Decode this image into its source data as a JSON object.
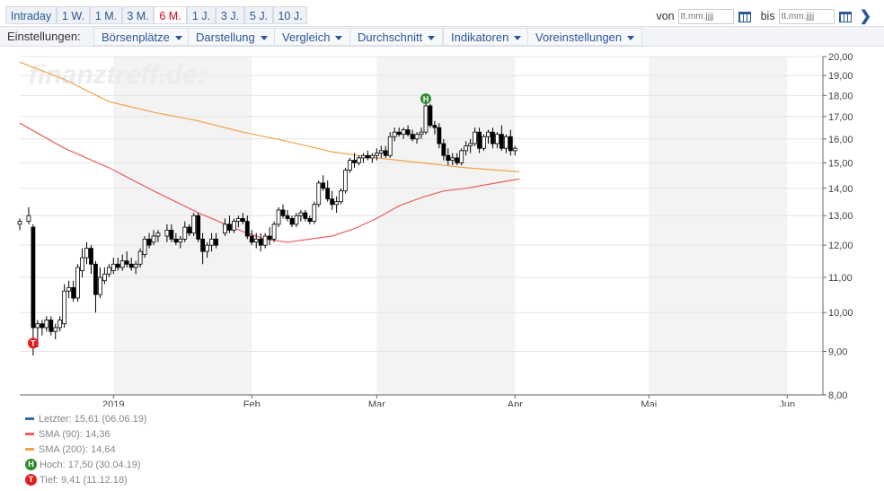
{
  "range_tabs": [
    {
      "label": "Intraday",
      "active": false
    },
    {
      "label": "1 W.",
      "active": false
    },
    {
      "label": "1 M.",
      "active": false
    },
    {
      "label": "3 M.",
      "active": false
    },
    {
      "label": "6 M.",
      "active": true
    },
    {
      "label": "1 J.",
      "active": false
    },
    {
      "label": "3 J.",
      "active": false
    },
    {
      "label": "5 J.",
      "active": false
    },
    {
      "label": "10 J.",
      "active": false
    }
  ],
  "date_range": {
    "from_label": "von",
    "to_label": "bis",
    "from_placeholder": "tt.mm.jjjj",
    "to_placeholder": "tt.mm.jjjj"
  },
  "settings": {
    "label": "Einstellungen:",
    "menus": [
      "Börsenplätze",
      "Darstellung",
      "Vergleich",
      "Durchschnitt",
      "Indikatoren",
      "Voreinstellungen"
    ]
  },
  "watermark": "finanztreff.de:",
  "colors": {
    "up": "#ffffff",
    "down": "#000000",
    "sma90": "#e8605e",
    "sma200": "#f0a24a",
    "last": "#2f6aa0",
    "high_badge": "#2e8b2e",
    "low_badge": "#e02020",
    "month_band": "#f3f3f3"
  },
  "chart_data": {
    "type": "candlestick",
    "title": "",
    "xlabel": "",
    "ylabel": "",
    "ylim": [
      8,
      20
    ],
    "yticks": [
      "8,00",
      "9,00",
      "10,00",
      "11,00",
      "12,00",
      "13,00",
      "14,00",
      "15,00",
      "16,00",
      "17,00",
      "18,00",
      "19,00",
      "20,00"
    ],
    "yscale": "log",
    "grid": true,
    "x_labels": [
      "2019",
      "Feb",
      "Mar",
      "Apr",
      "Mai",
      "Jun"
    ],
    "x_label_days": [
      21,
      52,
      80,
      111,
      141,
      172
    ],
    "shaded_months": [
      [
        21,
        52
      ],
      [
        80,
        111
      ],
      [
        141,
        172
      ]
    ],
    "x_range": [
      0,
      180
    ],
    "ohlc": [
      [
        0,
        12.7,
        12.9,
        12.5,
        12.8
      ],
      [
        2,
        12.8,
        13.3,
        12.7,
        13.0
      ],
      [
        3,
        12.6,
        12.7,
        8.9,
        9.6
      ],
      [
        4,
        9.6,
        9.8,
        9.1,
        9.7
      ],
      [
        5,
        9.7,
        9.8,
        9.4,
        9.6
      ],
      [
        6,
        9.6,
        9.9,
        9.5,
        9.8
      ],
      [
        7,
        9.8,
        9.9,
        9.4,
        9.5
      ],
      [
        8,
        9.5,
        9.7,
        9.3,
        9.6
      ],
      [
        9,
        9.6,
        9.9,
        9.5,
        9.8
      ],
      [
        10,
        9.7,
        10.8,
        9.6,
        10.6
      ],
      [
        11,
        10.6,
        10.9,
        10.4,
        10.7
      ],
      [
        12,
        10.7,
        10.9,
        10.3,
        10.4
      ],
      [
        13,
        10.4,
        11.4,
        10.3,
        11.3
      ],
      [
        14,
        11.2,
        11.9,
        11.0,
        11.6
      ],
      [
        15,
        11.6,
        12.1,
        11.4,
        11.9
      ],
      [
        16,
        11.9,
        12.0,
        11.1,
        11.4
      ],
      [
        17,
        11.4,
        11.5,
        10.0,
        10.5
      ],
      [
        18,
        10.5,
        11.3,
        10.4,
        11.0
      ],
      [
        19,
        10.9,
        11.3,
        10.8,
        11.1
      ],
      [
        20,
        11.1,
        11.4,
        11.0,
        11.3
      ],
      [
        21,
        11.2,
        11.6,
        11.1,
        11.4
      ],
      [
        22,
        11.4,
        11.6,
        11.2,
        11.3
      ],
      [
        23,
        11.3,
        11.7,
        11.2,
        11.5
      ],
      [
        24,
        11.5,
        11.8,
        11.3,
        11.4
      ],
      [
        25,
        11.4,
        11.6,
        11.2,
        11.3
      ],
      [
        26,
        11.3,
        11.5,
        11.1,
        11.4
      ],
      [
        27,
        11.4,
        11.9,
        11.3,
        11.8
      ],
      [
        28,
        11.7,
        12.3,
        11.6,
        12.2
      ],
      [
        29,
        12.2,
        12.4,
        11.9,
        12.0
      ],
      [
        30,
        12.1,
        12.5,
        12.0,
        12.3
      ],
      [
        31,
        12.3,
        12.5,
        12.1,
        12.4
      ],
      [
        33,
        12.3,
        12.7,
        12.1,
        12.5
      ],
      [
        34,
        12.5,
        12.7,
        12.1,
        12.2
      ],
      [
        35,
        12.2,
        12.4,
        12.0,
        12.1
      ],
      [
        36,
        12.1,
        12.3,
        11.9,
        12.2
      ],
      [
        37,
        12.2,
        12.8,
        12.1,
        12.6
      ],
      [
        38,
        12.6,
        12.7,
        12.3,
        12.4
      ],
      [
        39,
        12.4,
        13.1,
        12.3,
        13.0
      ],
      [
        40,
        13.0,
        13.1,
        12.1,
        12.2
      ],
      [
        41,
        12.2,
        12.4,
        11.4,
        11.8
      ],
      [
        42,
        11.8,
        12.1,
        11.6,
        12.0
      ],
      [
        43,
        12.0,
        12.4,
        11.8,
        12.2
      ],
      [
        44,
        12.2,
        12.4,
        11.9,
        12.0
      ],
      [
        46,
        12.4,
        12.9,
        12.3,
        12.7
      ],
      [
        47,
        12.7,
        13.0,
        12.4,
        12.5
      ],
      [
        48,
        12.5,
        12.9,
        12.4,
        12.8
      ],
      [
        49,
        12.8,
        13.0,
        12.6,
        12.9
      ],
      [
        50,
        12.9,
        13.1,
        12.7,
        12.8
      ],
      [
        51,
        12.8,
        13.0,
        12.2,
        12.3
      ],
      [
        52,
        12.3,
        12.5,
        12.0,
        12.1
      ],
      [
        53,
        12.1,
        12.4,
        11.9,
        12.2
      ],
      [
        54,
        12.2,
        12.4,
        11.8,
        12.0
      ],
      [
        55,
        12.0,
        12.4,
        11.9,
        12.3
      ],
      [
        56,
        12.3,
        12.6,
        12.0,
        12.2
      ],
      [
        57,
        12.2,
        12.8,
        12.1,
        12.7
      ],
      [
        58,
        12.7,
        13.3,
        12.6,
        13.2
      ],
      [
        59,
        13.2,
        13.4,
        12.9,
        13.0
      ],
      [
        60,
        13.0,
        13.2,
        12.8,
        12.9
      ],
      [
        61,
        12.9,
        13.0,
        12.6,
        12.7
      ],
      [
        62,
        12.7,
        13.1,
        12.6,
        13.0
      ],
      [
        63,
        13.0,
        13.2,
        12.8,
        13.1
      ],
      [
        64,
        13.1,
        13.2,
        12.8,
        12.9
      ],
      [
        65,
        12.9,
        13.0,
        12.7,
        12.8
      ],
      [
        66,
        12.8,
        13.5,
        12.7,
        13.4
      ],
      [
        67,
        13.4,
        14.3,
        13.3,
        14.2
      ],
      [
        68,
        14.2,
        14.5,
        13.9,
        14.0
      ],
      [
        69,
        14.0,
        14.3,
        13.5,
        13.6
      ],
      [
        70,
        13.6,
        13.9,
        13.2,
        13.4
      ],
      [
        71,
        13.4,
        13.7,
        13.1,
        13.5
      ],
      [
        72,
        13.5,
        14.0,
        13.4,
        13.9
      ],
      [
        73,
        13.9,
        14.8,
        13.8,
        14.7
      ],
      [
        74,
        14.7,
        15.2,
        14.6,
        15.1
      ],
      [
        75,
        15.1,
        15.4,
        14.8,
        15.0
      ],
      [
        76,
        15.0,
        15.3,
        14.9,
        15.2
      ],
      [
        77,
        15.2,
        15.4,
        15.0,
        15.3
      ],
      [
        78,
        15.3,
        15.5,
        15.1,
        15.2
      ],
      [
        79,
        15.2,
        15.4,
        15.0,
        15.3
      ],
      [
        80,
        15.3,
        15.6,
        15.1,
        15.4
      ],
      [
        81,
        15.4,
        15.7,
        15.2,
        15.5
      ],
      [
        82,
        15.5,
        15.7,
        15.2,
        15.3
      ],
      [
        83,
        15.3,
        16.3,
        15.2,
        16.1
      ],
      [
        84,
        16.1,
        16.5,
        15.9,
        16.3
      ],
      [
        85,
        16.3,
        16.5,
        16.1,
        16.2
      ],
      [
        86,
        16.2,
        16.5,
        16.0,
        16.4
      ],
      [
        87,
        16.4,
        16.6,
        16.1,
        16.2
      ],
      [
        88,
        16.2,
        16.4,
        15.9,
        16.0
      ],
      [
        89,
        16.0,
        16.3,
        15.8,
        16.2
      ],
      [
        90,
        16.2,
        16.5,
        16.0,
        16.3
      ],
      [
        91,
        16.3,
        17.6,
        16.2,
        17.5
      ],
      [
        92,
        17.5,
        17.6,
        16.5,
        16.6
      ],
      [
        93,
        16.6,
        16.8,
        16.2,
        16.5
      ],
      [
        94,
        16.5,
        16.7,
        15.6,
        15.8
      ],
      [
        95,
        15.8,
        16.0,
        15.1,
        15.3
      ],
      [
        96,
        15.3,
        15.6,
        14.9,
        15.1
      ],
      [
        97,
        15.1,
        15.4,
        14.9,
        15.2
      ],
      [
        98,
        15.2,
        15.4,
        14.9,
        15.0
      ],
      [
        99,
        15.0,
        15.6,
        14.9,
        15.5
      ],
      [
        100,
        15.5,
        15.9,
        15.3,
        15.7
      ],
      [
        101,
        15.7,
        16.0,
        15.4,
        15.8
      ],
      [
        102,
        15.8,
        16.5,
        15.7,
        16.3
      ],
      [
        103,
        16.3,
        16.5,
        15.4,
        15.6
      ],
      [
        104,
        15.6,
        16.2,
        15.5,
        16.1
      ],
      [
        105,
        16.1,
        16.4,
        15.8,
        16.3
      ],
      [
        106,
        16.3,
        16.5,
        15.6,
        15.8
      ],
      [
        107,
        15.8,
        16.3,
        15.6,
        16.2
      ],
      [
        108,
        16.2,
        16.6,
        15.5,
        15.6
      ],
      [
        109,
        15.6,
        16.2,
        15.4,
        16.1
      ],
      [
        110,
        16.1,
        16.4,
        15.3,
        15.5
      ],
      [
        111,
        15.5,
        15.7,
        15.3,
        15.6
      ]
    ],
    "series": [
      {
        "name": "SMA (90)",
        "x": [
          0,
          10,
          20,
          30,
          40,
          50,
          55,
          60,
          65,
          70,
          75,
          80,
          85,
          90,
          95,
          100,
          105,
          110,
          112
        ],
        "values": [
          16.7,
          15.6,
          14.8,
          13.9,
          13.1,
          12.45,
          12.2,
          12.1,
          12.2,
          12.3,
          12.55,
          12.9,
          13.35,
          13.65,
          13.9,
          14.0,
          14.15,
          14.3,
          14.36
        ]
      },
      {
        "name": "SMA (200)",
        "x": [
          0,
          10,
          20,
          30,
          40,
          50,
          60,
          70,
          80,
          90,
          100,
          112
        ],
        "values": [
          19.7,
          18.8,
          17.7,
          17.2,
          16.8,
          16.3,
          15.9,
          15.45,
          15.2,
          15.0,
          14.8,
          14.64
        ]
      }
    ],
    "high_marker": {
      "x": 91,
      "value": 17.5
    },
    "low_marker": {
      "x": 3,
      "value": 9.41
    },
    "last_value": 15.61
  },
  "legend": [
    {
      "kind": "swatch",
      "color_key": "last",
      "text": "Letzter: 15,61 (06.06.19)"
    },
    {
      "kind": "swatch",
      "color_key": "sma90",
      "text": "SMA (90): 14,36"
    },
    {
      "kind": "swatch",
      "color_key": "sma200",
      "text": "SMA (200): 14,64"
    },
    {
      "kind": "badge",
      "color_key": "high_badge",
      "badge": "H",
      "text": "Hoch: 17,50 (30.04.19)"
    },
    {
      "kind": "badge",
      "color_key": "low_badge",
      "badge": "T",
      "text": "Tief: 9,41 (11.12.18)"
    }
  ]
}
